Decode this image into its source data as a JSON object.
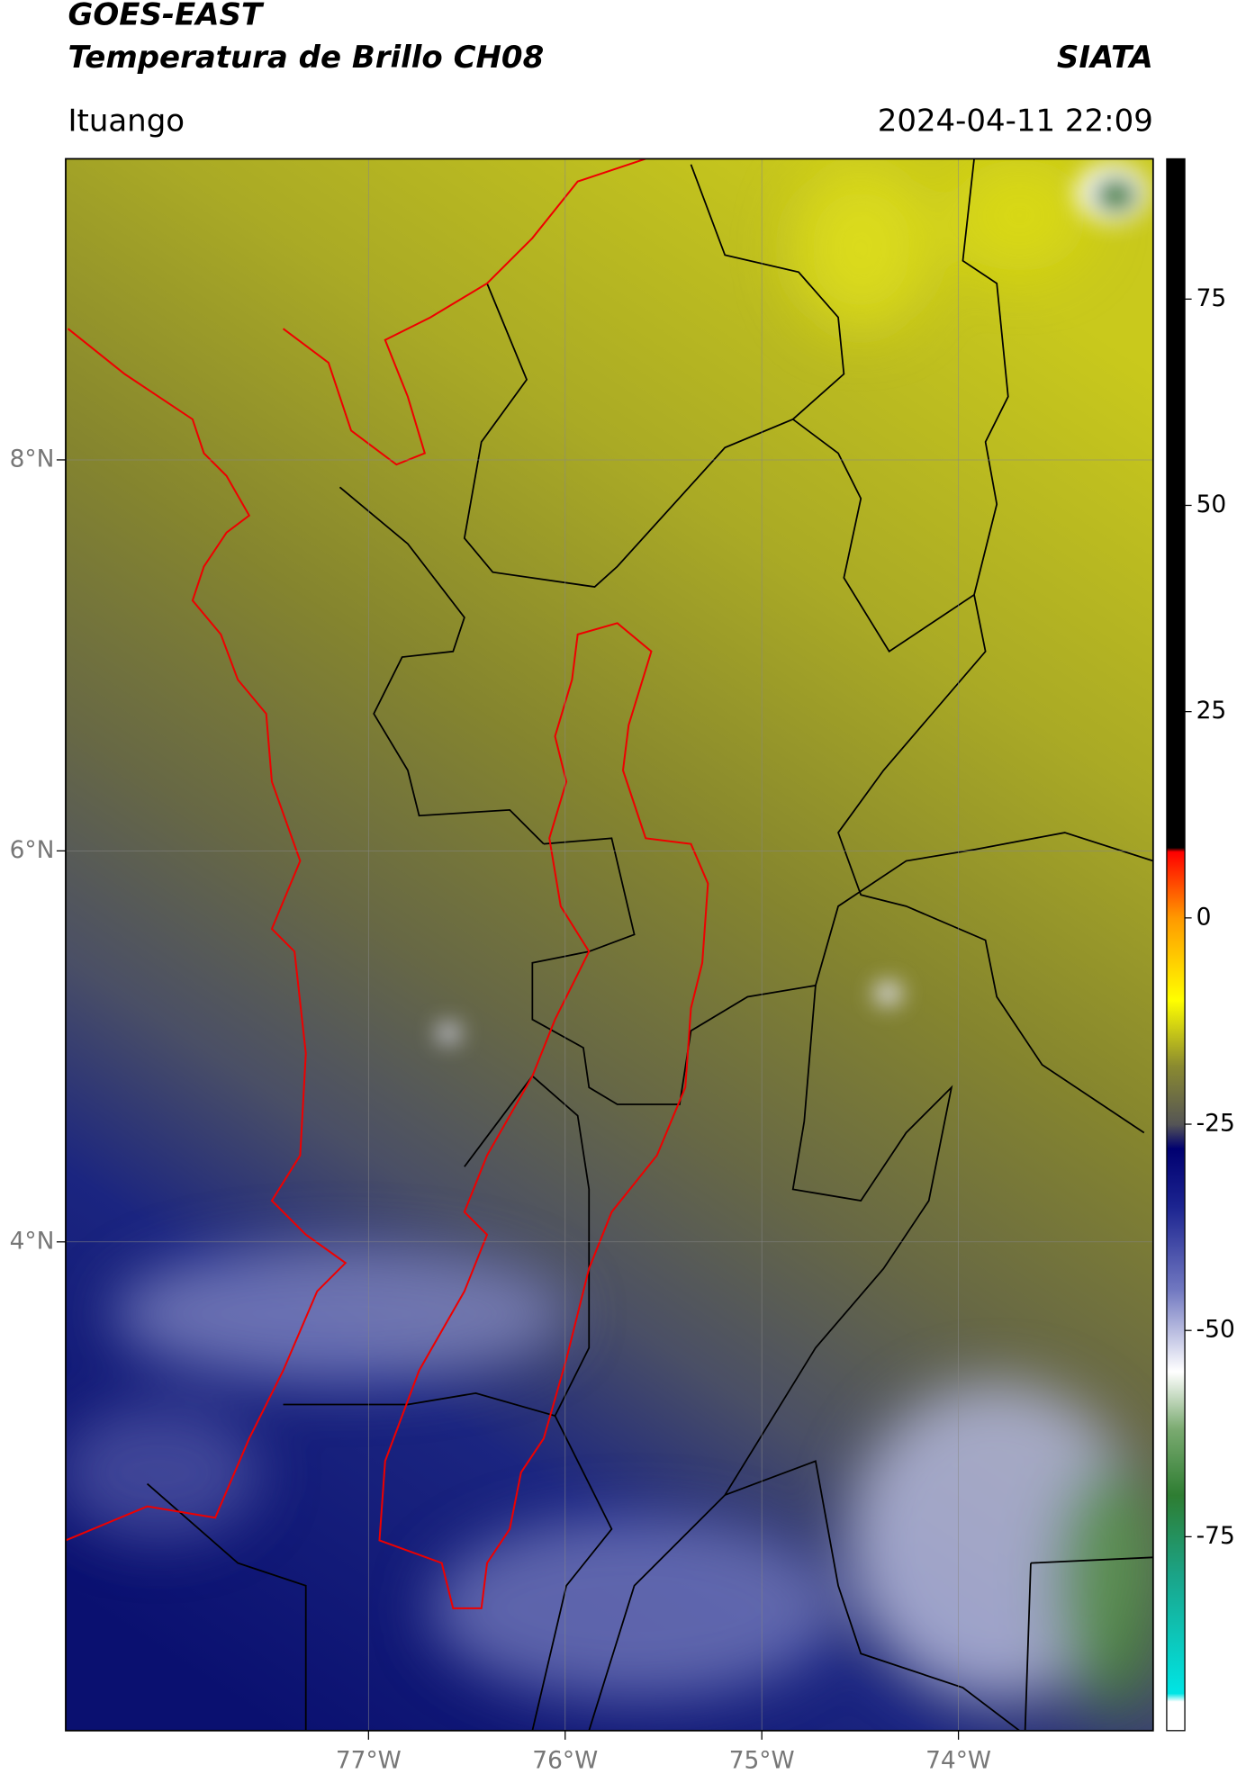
{
  "chart_data": {
    "type": "map",
    "title": "GOES-EAST",
    "subtitle": "Temperatura de Brillo CH08",
    "source": "SIATA",
    "location": "Ituango",
    "datetime": "2024-04-11 22:09",
    "xlim": [
      -78.54,
      -73.01
    ],
    "ylim": [
      1.5,
      9.54
    ],
    "xticks": [
      {
        "value": -77,
        "label": "77°W"
      },
      {
        "value": -76,
        "label": "76°W"
      },
      {
        "value": -75,
        "label": "75°W"
      },
      {
        "value": -74,
        "label": "74°W"
      }
    ],
    "yticks": [
      {
        "value": 4,
        "label": "4°N"
      },
      {
        "value": 6,
        "label": "6°N"
      },
      {
        "value": 8,
        "label": "8°N"
      }
    ],
    "grid": true,
    "colorbar": {
      "lim": [
        -98.5,
        92
      ],
      "ticks": [
        -75,
        -50,
        -25,
        0,
        25,
        50,
        75
      ],
      "colormap": [
        {
          "value": -98.5,
          "color": "#ffffff"
        },
        {
          "value": -95,
          "color": "#ffffff"
        },
        {
          "value": -94,
          "color": "#00e5e5"
        },
        {
          "value": -80,
          "color": "#1aa58a"
        },
        {
          "value": -70,
          "color": "#2e7d32"
        },
        {
          "value": -62,
          "color": "#7aaa70"
        },
        {
          "value": -55,
          "color": "#ffffff"
        },
        {
          "value": -45,
          "color": "#7077c0"
        },
        {
          "value": -35,
          "color": "#1c2490"
        },
        {
          "value": -28,
          "color": "#000070"
        },
        {
          "value": -25,
          "color": "#555555"
        },
        {
          "value": -18,
          "color": "#8a8a30"
        },
        {
          "value": -10,
          "color": "#ffff00"
        },
        {
          "value": 0,
          "color": "#ff9900"
        },
        {
          "value": 8,
          "color": "#ff0000"
        },
        {
          "value": 8.5,
          "color": "#000000"
        },
        {
          "value": 92,
          "color": "#000000"
        }
      ]
    }
  }
}
